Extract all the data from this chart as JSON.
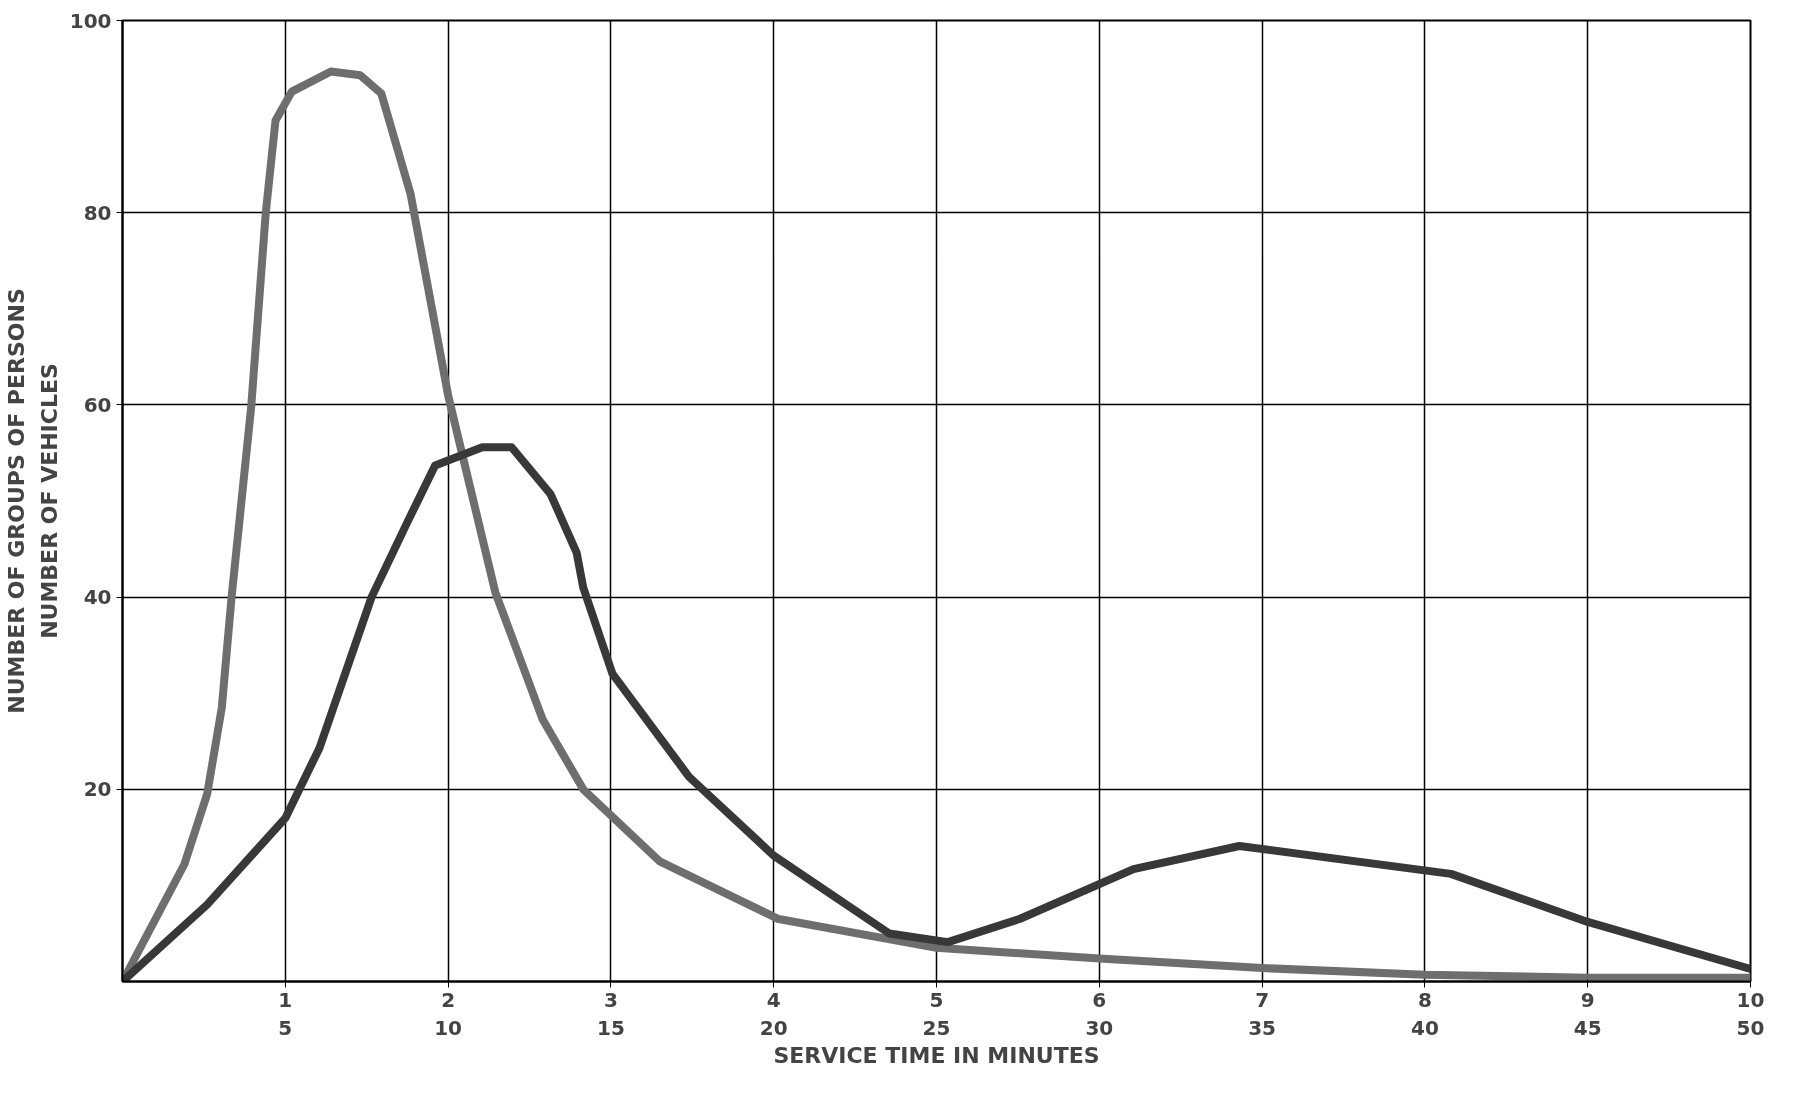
{
  "chart_data": {
    "type": "line",
    "xlabel": "SERVICE TIME IN MINUTES",
    "ylabel": "NUMBER OF VEHICLES",
    "annotations": [
      "NUMBER OF GROUPS OF PERSONS"
    ],
    "xlim": [
      0,
      10
    ],
    "xticks": [
      1,
      2,
      3,
      4,
      5,
      6,
      7,
      8,
      9,
      10
    ],
    "x2lim": [
      0,
      50
    ],
    "x2ticks": [
      5,
      10,
      15,
      20,
      25,
      30,
      35,
      40,
      45,
      50
    ],
    "ylim": [
      0,
      100
    ],
    "yticks": [
      {
        "value": 20,
        "label": "20"
      },
      {
        "value": 40,
        "label": "40"
      },
      {
        "value": 60,
        "label": "60"
      },
      {
        "value": 80,
        "label": "80"
      },
      {
        "value": 100,
        "label": "100"
      }
    ],
    "grid": true,
    "marker": "none",
    "line_style": "solid",
    "series": [
      {
        "color": "#6e6e6e",
        "x": [
          0,
          0.38,
          0.52,
          0.61,
          0.67,
          0.79,
          0.88,
          0.94,
          1.04,
          1.28,
          1.46,
          1.59,
          1.77,
          2.0,
          2.29,
          2.58,
          2.83,
          3.3,
          4.03,
          5,
          6,
          7,
          8,
          9,
          10
        ],
        "values": [
          0,
          12.2,
          19.5,
          28.5,
          40,
          59.7,
          80,
          89.6,
          92.6,
          94.7,
          94.3,
          92.4,
          81.9,
          61,
          40.5,
          27.3,
          20,
          12.5,
          6.5,
          3.5,
          2.4,
          1.4,
          0.7,
          0.4,
          0.4
        ]
      },
      {
        "color": "#383838",
        "x": [
          0,
          0.52,
          1,
          1.21,
          1.53,
          1.75,
          1.92,
          2.21,
          2.39,
          2.63,
          2.79,
          2.83,
          3.01,
          3.48,
          4,
          4.71,
          5.07,
          5.51,
          6.21,
          6.86,
          8.16,
          9,
          10
        ],
        "values": [
          0,
          8,
          17,
          24.3,
          40,
          47.8,
          53.7,
          55.6,
          55.6,
          50.7,
          44.6,
          41,
          32,
          21.3,
          13.1,
          5,
          4.1,
          6.5,
          11.7,
          14.1,
          11.2,
          6.2,
          1.3
        ]
      }
    ]
  }
}
